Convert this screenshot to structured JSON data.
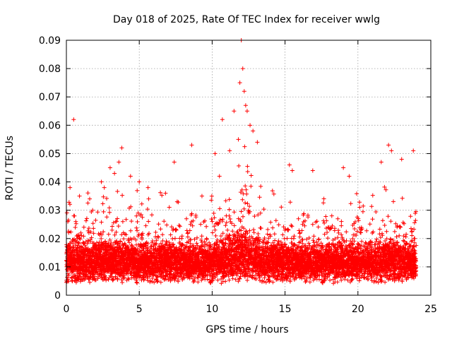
{
  "chart_data": {
    "type": "scatter",
    "title": "Day 018 of 2025, Rate Of TEC Index for receiver wwlg",
    "xlabel": "GPS time / hours",
    "ylabel": "ROTI / TECUs",
    "xlim": [
      0,
      25
    ],
    "ylim": [
      0,
      0.09
    ],
    "xticks": [
      0,
      5,
      10,
      15,
      20,
      25
    ],
    "xtick_labels": [
      "0",
      "5",
      "10",
      "15",
      "20",
      "25"
    ],
    "yticks": [
      0,
      0.01,
      0.02,
      0.03,
      0.04,
      0.05,
      0.06,
      0.07,
      0.08,
      0.09
    ],
    "ytick_labels": [
      "0",
      "0.01",
      "0.02",
      "0.03",
      "0.04",
      "0.05",
      "0.06",
      "0.07",
      "0.08",
      "0.09"
    ],
    "grid": true,
    "marker": "+",
    "series": [
      {
        "name": "ROTI",
        "color": "#ff0000",
        "note": "dense band of points, 0 to 24 h, mostly 0.003-0.02 TECU/min; highlighted outliers listed",
        "x": [
          0.1,
          0.25,
          0.5,
          0.55,
          0.9,
          1.2,
          1.6,
          1.8,
          2.4,
          2.6,
          3.0,
          3.3,
          3.6,
          3.8,
          4.4,
          5.0,
          5.6,
          6.8,
          7.4,
          7.6,
          8.6,
          9.3,
          10.2,
          10.5,
          10.7,
          11.2,
          11.5,
          11.8,
          11.9,
          12.0,
          12.1,
          12.2,
          12.3,
          12.4,
          12.6,
          12.8,
          13.1,
          15.3,
          15.5,
          16.9,
          19.0,
          19.4,
          21.6,
          22.1,
          22.3,
          23.0,
          23.8
        ],
        "y": [
          0.026,
          0.038,
          0.062,
          0.028,
          0.035,
          0.024,
          0.034,
          0.03,
          0.04,
          0.038,
          0.045,
          0.043,
          0.047,
          0.052,
          0.042,
          0.04,
          0.038,
          0.036,
          0.047,
          0.033,
          0.053,
          0.035,
          0.05,
          0.042,
          0.062,
          0.051,
          0.065,
          0.055,
          0.075,
          0.09,
          0.08,
          0.072,
          0.067,
          0.065,
          0.06,
          0.058,
          0.054,
          0.046,
          0.044,
          0.044,
          0.045,
          0.042,
          0.047,
          0.053,
          0.051,
          0.048,
          0.051
        ]
      }
    ]
  }
}
